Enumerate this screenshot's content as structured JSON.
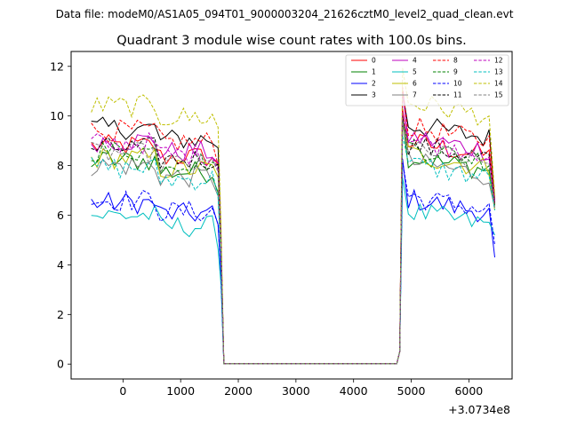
{
  "header": {
    "data_file": "Data file: modeM0/AS1A05_094T01_9000003204_21626cztM0_level2_quad_clean.evt"
  },
  "chart_data": {
    "type": "line",
    "title": "Quadrant 3 module wise count rates with 100.0s bins.",
    "xlabel": "",
    "ylabel": "",
    "x_offset_label": "+3.0734e8",
    "xlim": [
      -900,
      6750
    ],
    "ylim": [
      -0.6,
      12.6
    ],
    "x_ticks": [
      0,
      1000,
      2000,
      3000,
      4000,
      5000,
      6000
    ],
    "x_tick_labels": [
      "0",
      "1000",
      "2000",
      "3000",
      "4000",
      "5000",
      "6000"
    ],
    "y_ticks": [
      0,
      2,
      4,
      6,
      8,
      10,
      12
    ],
    "y_tick_labels": [
      "0",
      "2",
      "4",
      "6",
      "8",
      "10",
      "12"
    ],
    "legend_location": "top-right",
    "legend_columns": 4,
    "gap": {
      "start": 1750,
      "end": 4750,
      "level": 0.02
    },
    "segments": [
      {
        "start": -550,
        "end": 1650,
        "step": 100
      },
      {
        "start": 4850,
        "end": 6350,
        "step": 100
      }
    ],
    "end_points": {
      "x1": [
        1700,
        1750
      ],
      "x2": [
        4750,
        4800,
        6450
      ]
    },
    "series": [
      {
        "name": "0",
        "color": "#ff0000",
        "dash": false,
        "base": 8.6,
        "end": 6.4
      },
      {
        "name": "1",
        "color": "#008000",
        "dash": false,
        "base": 8.0,
        "end": 6.4
      },
      {
        "name": "2",
        "color": "#0000ff",
        "dash": false,
        "base": 6.3,
        "end": 4.3
      },
      {
        "name": "3",
        "color": "#000000",
        "dash": false,
        "base": 9.3,
        "end": 6.6
      },
      {
        "name": "4",
        "color": "#bf00bf",
        "dash": false,
        "base": 8.8,
        "end": 6.5
      },
      {
        "name": "5",
        "color": "#00bfbf",
        "dash": false,
        "base": 5.8,
        "end": 5.2
      },
      {
        "name": "6",
        "color": "#bfbf00",
        "dash": false,
        "base": 8.1,
        "end": 6.2
      },
      {
        "name": "7",
        "color": "#808080",
        "dash": false,
        "base": 7.8,
        "end": 6.3
      },
      {
        "name": "8",
        "color": "#ff0000",
        "dash": true,
        "base": 9.2,
        "end": 6.5
      },
      {
        "name": "9",
        "color": "#008000",
        "dash": true,
        "base": 8.4,
        "end": 6.4
      },
      {
        "name": "10",
        "color": "#0000ff",
        "dash": true,
        "base": 6.4,
        "end": 4.8
      },
      {
        "name": "11",
        "color": "#000000",
        "dash": true,
        "base": 8.5,
        "end": 6.4
      },
      {
        "name": "12",
        "color": "#bf00bf",
        "dash": true,
        "base": 8.7,
        "end": 6.5
      },
      {
        "name": "13",
        "color": "#00bfbf",
        "dash": true,
        "base": 7.7,
        "end": 6.2
      },
      {
        "name": "14",
        "color": "#bfbf00",
        "dash": true,
        "base": 10.2,
        "end": 6.8
      },
      {
        "name": "15",
        "color": "#808080",
        "dash": true,
        "base": 8.3,
        "end": 6.3
      }
    ]
  }
}
